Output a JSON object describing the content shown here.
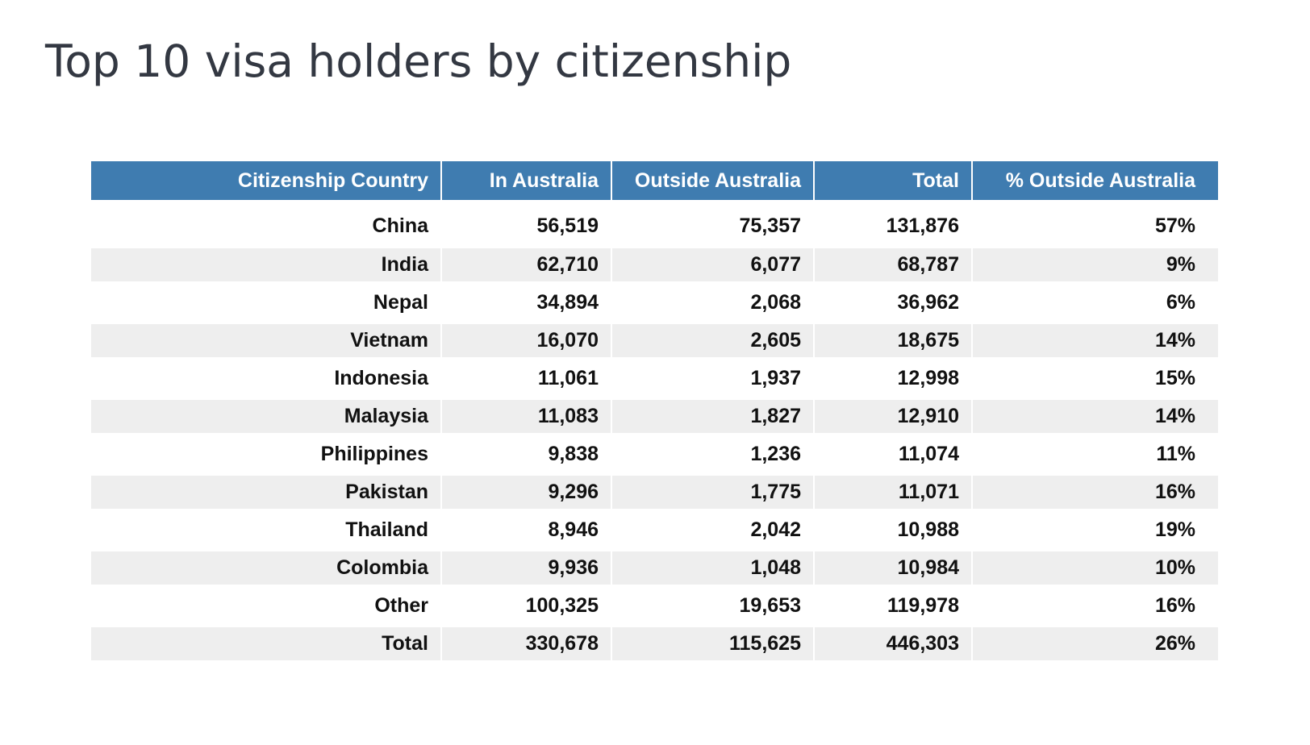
{
  "title": "Top 10 visa holders by citizenship",
  "colors": {
    "header_bg": "#3f7cb0",
    "header_text": "#ffffff",
    "stripe": "#eeeeee",
    "title_text": "#333842"
  },
  "chart_data": {
    "type": "table",
    "title": "Top 10 visa holders by citizenship",
    "columns": [
      "Citizenship Country",
      "In Australia",
      "Outside Australia",
      "Total",
      "% Outside Australia"
    ],
    "rows": [
      [
        "China",
        "56,519",
        "75,357",
        "131,876",
        "57%"
      ],
      [
        "India",
        "62,710",
        "6,077",
        "68,787",
        "9%"
      ],
      [
        "Nepal",
        "34,894",
        "2,068",
        "36,962",
        "6%"
      ],
      [
        "Vietnam",
        "16,070",
        "2,605",
        "18,675",
        "14%"
      ],
      [
        "Indonesia",
        "11,061",
        "1,937",
        "12,998",
        "15%"
      ],
      [
        "Malaysia",
        "11,083",
        "1,827",
        "12,910",
        "14%"
      ],
      [
        "Philippines",
        "9,838",
        "1,236",
        "11,074",
        "11%"
      ],
      [
        "Pakistan",
        "9,296",
        "1,775",
        "11,071",
        "16%"
      ],
      [
        "Thailand",
        "8,946",
        "2,042",
        "10,988",
        "19%"
      ],
      [
        "Colombia",
        "9,936",
        "1,048",
        "10,984",
        "10%"
      ],
      [
        "Other",
        "100,325",
        "19,653",
        "119,978",
        "16%"
      ],
      [
        "Total",
        "330,678",
        "115,625",
        "446,303",
        "26%"
      ]
    ]
  }
}
